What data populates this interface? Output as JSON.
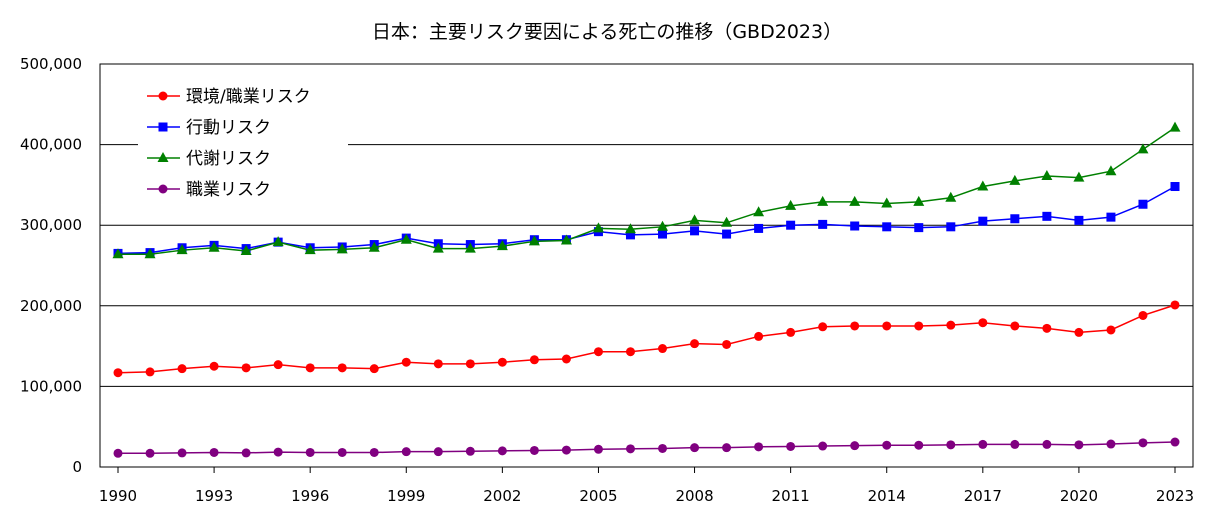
{
  "chart_data": {
    "type": "line",
    "title": "日本：主要リスク要因による死亡の推移（GBD2023）",
    "xlabel": "",
    "ylabel": "",
    "xlim": [
      1990,
      2023
    ],
    "ylim": [
      0,
      500000
    ],
    "x_ticks": [
      "1990",
      "1993",
      "1996",
      "1999",
      "2002",
      "2005",
      "2008",
      "2011",
      "2014",
      "2017",
      "2020",
      "2023"
    ],
    "y_ticks": [
      "0",
      "100,000",
      "200,000",
      "300,000",
      "400,000",
      "500,000"
    ],
    "gridlines": "horizontal",
    "legend_position": "top-left",
    "x": [
      1990,
      1991,
      1992,
      1993,
      1994,
      1995,
      1996,
      1997,
      1998,
      1999,
      2000,
      2001,
      2002,
      2003,
      2004,
      2005,
      2006,
      2007,
      2008,
      2009,
      2010,
      2011,
      2012,
      2013,
      2014,
      2015,
      2016,
      2017,
      2018,
      2019,
      2020,
      2021,
      2022,
      2023
    ],
    "series": [
      {
        "name": "環境/職業リスク",
        "color": "#ff0000",
        "marker": "circle",
        "values": [
          117000,
          118000,
          122000,
          125000,
          123000,
          127000,
          123000,
          123000,
          122000,
          130000,
          128000,
          128000,
          130000,
          133000,
          134000,
          143000,
          143000,
          147000,
          153000,
          152000,
          162000,
          167000,
          174000,
          175000,
          175000,
          175000,
          176000,
          179000,
          175000,
          172000,
          167000,
          170000,
          188000,
          201000
        ]
      },
      {
        "name": "行動リスク",
        "color": "#0000ff",
        "marker": "square",
        "values": [
          265000,
          266000,
          272000,
          275000,
          271000,
          279000,
          272000,
          273000,
          276000,
          284000,
          277000,
          276000,
          277000,
          282000,
          282000,
          292000,
          288000,
          289000,
          293000,
          289000,
          296000,
          300000,
          301000,
          299000,
          298000,
          297000,
          298000,
          305000,
          308000,
          311000,
          306000,
          310000,
          326000,
          348000
        ]
      },
      {
        "name": "代謝リスク",
        "color": "#008000",
        "marker": "triangle",
        "values": [
          264000,
          264000,
          269000,
          272000,
          268000,
          279000,
          269000,
          270000,
          272000,
          282000,
          271000,
          271000,
          274000,
          280000,
          281000,
          296000,
          295000,
          298000,
          306000,
          303000,
          316000,
          324000,
          329000,
          329000,
          327000,
          329000,
          334000,
          348000,
          355000,
          361000,
          359000,
          367000,
          394000,
          421000
        ]
      },
      {
        "name": "職業リスク",
        "color": "#800080",
        "marker": "circle",
        "values": [
          17000,
          17000,
          17500,
          18000,
          17500,
          18500,
          18000,
          18000,
          18000,
          19000,
          19000,
          19500,
          20000,
          20500,
          21000,
          22000,
          22500,
          23000,
          24000,
          24000,
          25000,
          25500,
          26000,
          26500,
          27000,
          27000,
          27500,
          28000,
          28000,
          28000,
          27500,
          28500,
          30000,
          31000
        ]
      }
    ]
  }
}
